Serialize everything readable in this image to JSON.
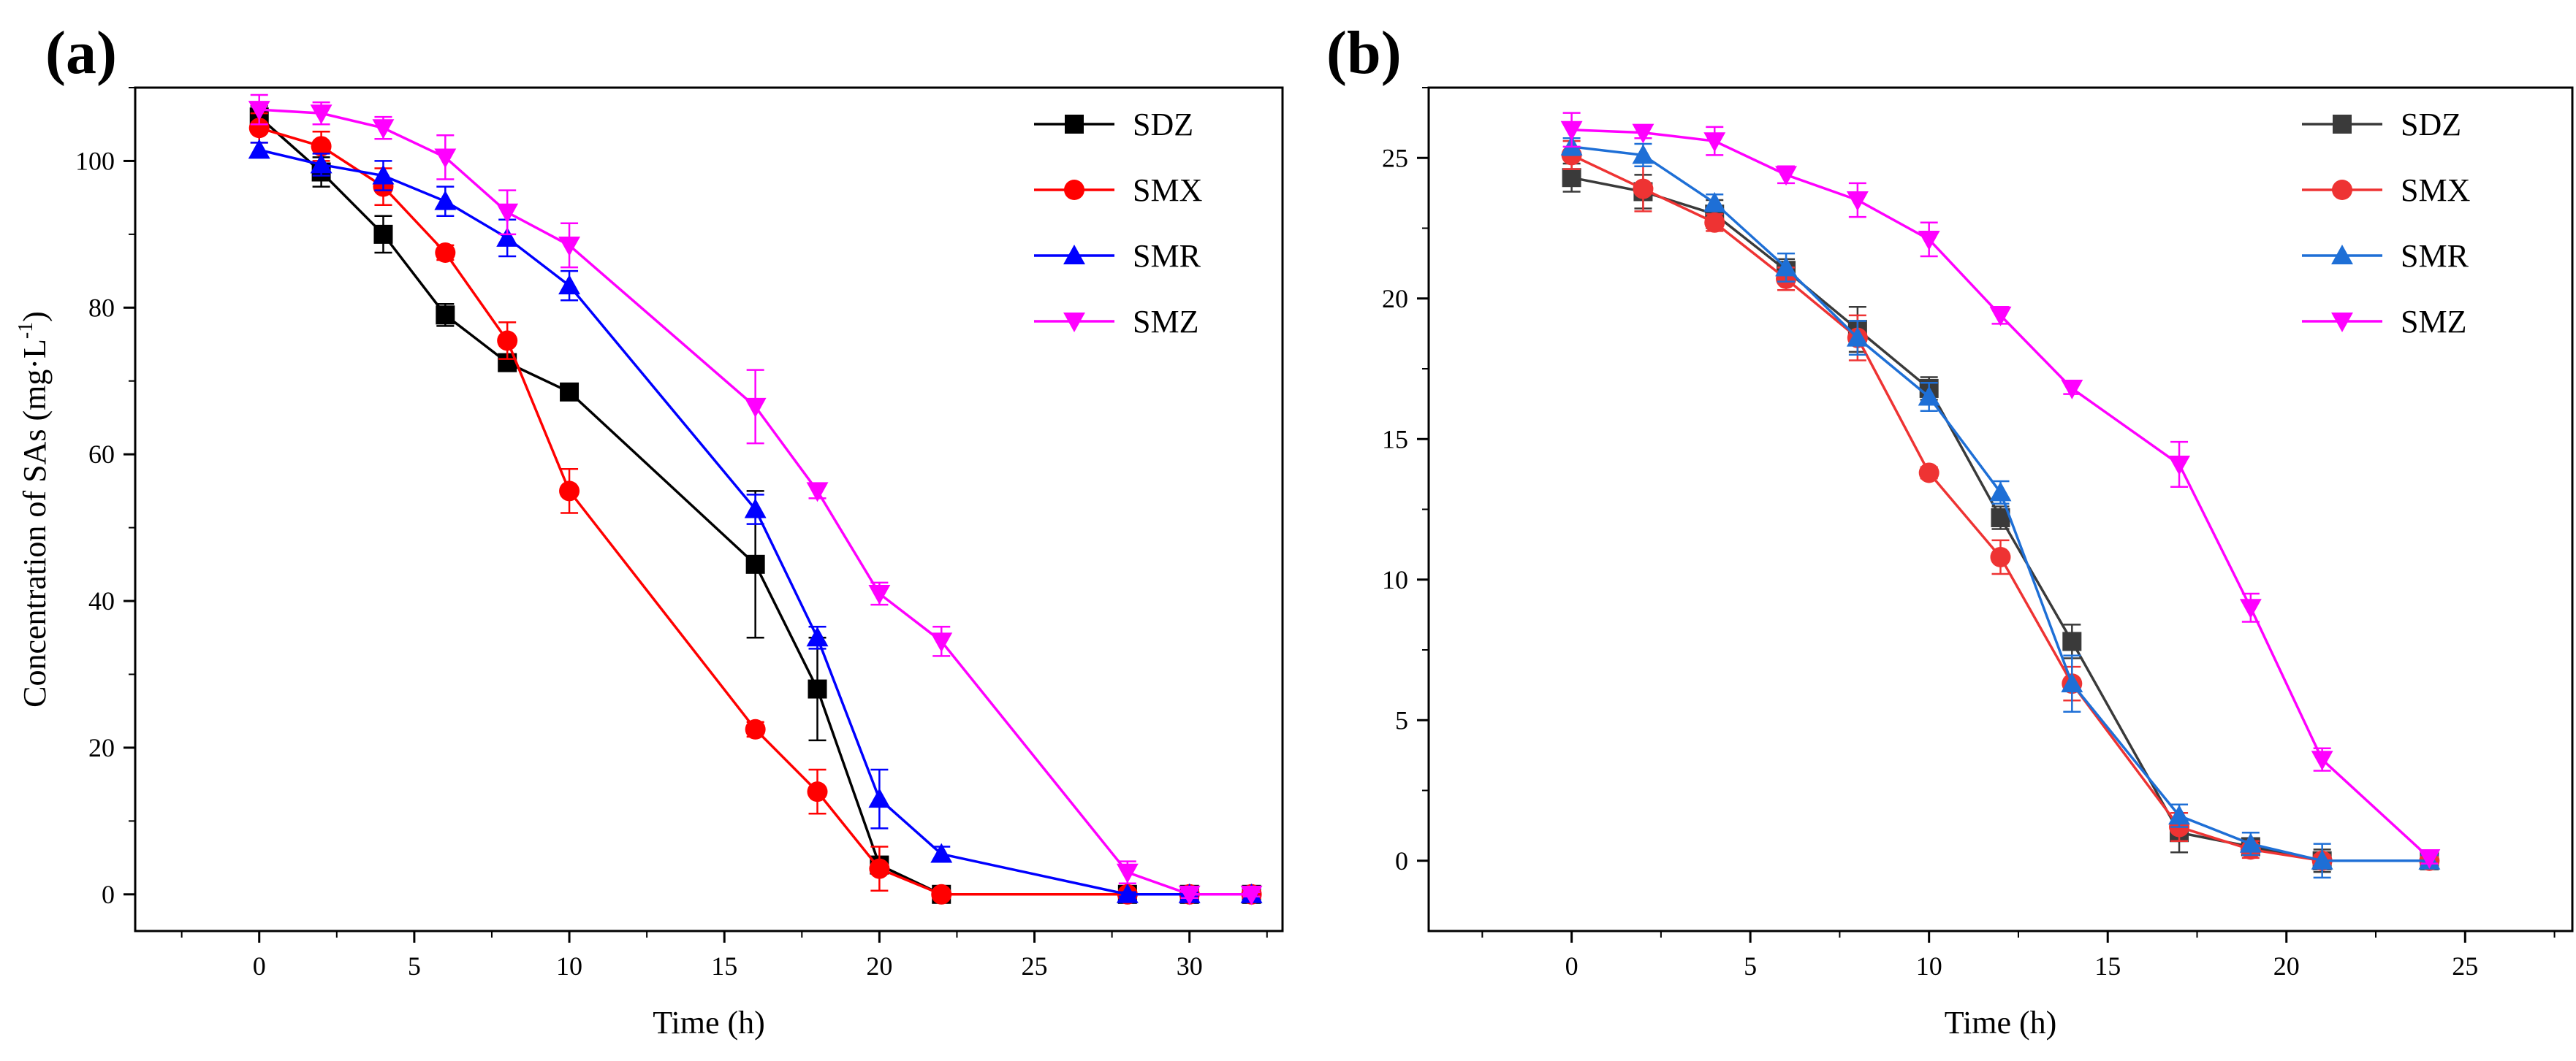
{
  "chart_data": [
    {
      "type": "line",
      "panel_label": "(a)",
      "title": "",
      "xlabel": "Time (h)",
      "ylabel": "Concentration of SAs (mg·L",
      "ylabel_sup": "-1",
      "ylabel_close": ")",
      "xlim": [
        -4,
        33
      ],
      "ylim": [
        -5,
        110
      ],
      "xticks": [
        0,
        5,
        10,
        15,
        20,
        25,
        30
      ],
      "yticks": [
        0,
        20,
        40,
        60,
        80,
        100
      ],
      "legend_position": "top-right",
      "series": [
        {
          "name": "SDZ",
          "color": "#000000",
          "marker": "square",
          "x": [
            0,
            2,
            4,
            6,
            8,
            10,
            16,
            18,
            20,
            22,
            28,
            30,
            32
          ],
          "y": [
            106,
            98.5,
            90,
            79,
            72.5,
            68.5,
            45,
            28,
            4,
            0,
            0,
            0,
            0
          ],
          "err": [
            1.5,
            2,
            2.5,
            1.5,
            1,
            1,
            10,
            7,
            1,
            0.5,
            0.3,
            0.3,
            0.3
          ]
        },
        {
          "name": "SMX",
          "color": "#ff0000",
          "marker": "circle",
          "x": [
            0,
            2,
            4,
            6,
            8,
            10,
            16,
            18,
            20,
            22,
            28,
            30,
            32
          ],
          "y": [
            104.5,
            102,
            96.5,
            87.5,
            75.5,
            55,
            22.5,
            14,
            3.5,
            0,
            0,
            0,
            0
          ],
          "err": [
            2,
            2,
            2.5,
            1,
            2.5,
            3,
            1,
            3,
            3,
            0.5,
            0.3,
            0.3,
            0.3
          ]
        },
        {
          "name": "SMR",
          "color": "#0000ff",
          "marker": "triangle-up",
          "x": [
            0,
            2,
            4,
            6,
            8,
            10,
            16,
            18,
            20,
            22,
            28,
            30,
            32
          ],
          "y": [
            101.5,
            99.5,
            98,
            94.5,
            89.5,
            83,
            52.5,
            35,
            13,
            5.5,
            0,
            0,
            0
          ],
          "err": [
            1,
            1.5,
            2,
            2,
            2.5,
            2,
            2,
            1.5,
            4,
            1,
            0.3,
            0.3,
            0.3
          ]
        },
        {
          "name": "SMZ",
          "color": "#ff00ff",
          "marker": "triangle-down",
          "x": [
            0,
            2,
            4,
            6,
            8,
            10,
            16,
            18,
            20,
            22,
            28,
            30,
            32
          ],
          "y": [
            107,
            106.5,
            104.5,
            100.5,
            93,
            88.5,
            66.5,
            55,
            41,
            34.5,
            3,
            0,
            0
          ],
          "err": [
            2,
            1.5,
            1.5,
            3,
            3,
            3,
            5,
            1,
            1.5,
            2,
            1.5,
            0.5,
            0.3
          ]
        }
      ]
    },
    {
      "type": "line",
      "panel_label": "(b)",
      "title": "",
      "xlabel": "Time (h)",
      "ylabel": "",
      "xlim": [
        -4,
        28
      ],
      "ylim": [
        -2.5,
        27.5
      ],
      "xticks": [
        0,
        5,
        10,
        15,
        20,
        25
      ],
      "yticks": [
        0,
        5,
        10,
        15,
        20,
        25
      ],
      "legend_position": "top-right",
      "series": [
        {
          "name": "SDZ",
          "color": "#3a3a3a",
          "marker": "square",
          "x": [
            0,
            2,
            4,
            6,
            8,
            10,
            12,
            14,
            17,
            19,
            21,
            24
          ],
          "y": [
            24.3,
            23.8,
            23.0,
            21.0,
            18.9,
            16.8,
            12.2,
            7.8,
            1.0,
            0.5,
            0,
            0
          ],
          "err": [
            0.5,
            0.6,
            0.5,
            0.4,
            0.8,
            0.4,
            0.4,
            0.6,
            0.7,
            0.3,
            0.4,
            0.2
          ]
        },
        {
          "name": "SMX",
          "color": "#ee3333",
          "marker": "circle",
          "x": [
            0,
            2,
            4,
            6,
            8,
            10,
            12,
            14,
            17,
            19,
            21,
            24
          ],
          "y": [
            25.1,
            23.9,
            22.7,
            20.7,
            18.6,
            13.8,
            10.8,
            6.3,
            1.2,
            0.4,
            0,
            0
          ],
          "err": [
            0.5,
            0.8,
            0.3,
            0.4,
            0.8,
            0.2,
            0.6,
            0.6,
            0.5,
            0.3,
            0.2,
            0.2
          ]
        },
        {
          "name": "SMR",
          "color": "#1e6fd6",
          "marker": "triangle-up",
          "x": [
            0,
            2,
            4,
            6,
            8,
            10,
            12,
            14,
            17,
            19,
            21,
            24
          ],
          "y": [
            25.4,
            25.1,
            23.4,
            21.1,
            18.6,
            16.5,
            13.1,
            6.3,
            1.6,
            0.6,
            0,
            0
          ],
          "err": [
            0.3,
            0.4,
            0.3,
            0.5,
            0.6,
            0.5,
            0.4,
            1.0,
            0.4,
            0.4,
            0.6,
            0.2
          ]
        },
        {
          "name": "SMZ",
          "color": "#ff00ff",
          "marker": "triangle-down",
          "x": [
            0,
            2,
            4,
            6,
            8,
            10,
            12,
            14,
            17,
            19,
            21,
            24
          ],
          "y": [
            26.0,
            25.9,
            25.6,
            24.4,
            23.5,
            22.1,
            19.4,
            16.8,
            14.1,
            9.0,
            3.6,
            0.1
          ],
          "err": [
            0.6,
            0.2,
            0.5,
            0.3,
            0.6,
            0.6,
            0.3,
            0.2,
            0.8,
            0.5,
            0.4,
            0.2
          ]
        }
      ]
    }
  ]
}
